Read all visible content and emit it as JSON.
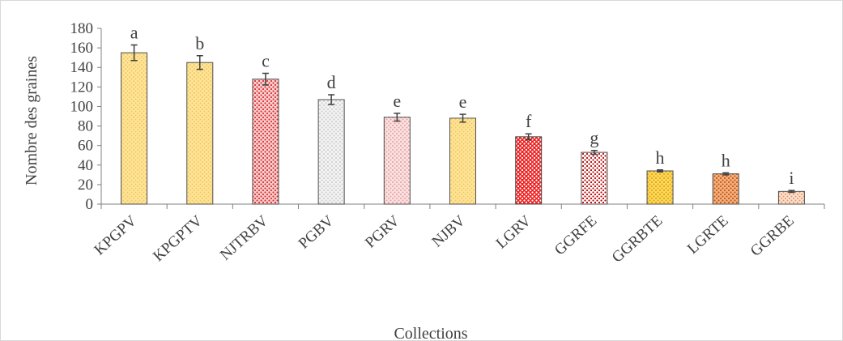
{
  "chart_data": {
    "type": "bar",
    "title": "",
    "xlabel": "Collections",
    "ylabel": "Nombre des graines",
    "ylim": [
      0,
      180
    ],
    "yticks": [
      0,
      20,
      40,
      60,
      80,
      100,
      120,
      140,
      160,
      180
    ],
    "grid": false,
    "categories": [
      "KPGPV",
      "KPGPTV",
      "NJTRBV",
      "PGBV",
      "PGRV",
      "NJBV",
      "LGRV",
      "GGRFE",
      "GGRBTE",
      "LGRTE",
      "GGRBE"
    ],
    "values": [
      155,
      145,
      128,
      107,
      89,
      88,
      69,
      53,
      34,
      31,
      13
    ],
    "errors": [
      8,
      7,
      6,
      5,
      4,
      4,
      3,
      2,
      1,
      1,
      1
    ],
    "letters": [
      "a",
      "b",
      "c",
      "d",
      "e",
      "e",
      "f",
      "g",
      "h",
      "h",
      "i"
    ],
    "bar_styles": [
      {
        "fill": "#ffe699",
        "dot": "#f2c96a",
        "stroke": "#4d4d4d"
      },
      {
        "fill": "#ffe699",
        "dot": "#f2c96a",
        "stroke": "#4d4d4d"
      },
      {
        "fill": "#f6d0d0",
        "dot": "#e03030",
        "stroke": "#4d4d4d"
      },
      {
        "fill": "#f4f4f4",
        "dot": "#d0d0d0",
        "stroke": "#4d4d4d"
      },
      {
        "fill": "#fbe4e4",
        "dot": "#e8a6a6",
        "stroke": "#4d4d4d"
      },
      {
        "fill": "#ffe699",
        "dot": "#f2c96a",
        "stroke": "#4d4d4d"
      },
      {
        "fill": "#ee2222",
        "dot": "#ffffff",
        "stroke": "#4d4d4d"
      },
      {
        "fill": "#ffffff",
        "dot": "#c00000",
        "stroke": "#4d4d4d"
      },
      {
        "fill": "#ffd966",
        "dot": "#e0a800",
        "stroke": "#4d4d4d"
      },
      {
        "fill": "#f4b183",
        "dot": "#c55a11",
        "stroke": "#4d4d4d"
      },
      {
        "fill": "#fbe5d6",
        "dot": "#ec9a6a",
        "stroke": "#4d4d4d"
      }
    ]
  }
}
